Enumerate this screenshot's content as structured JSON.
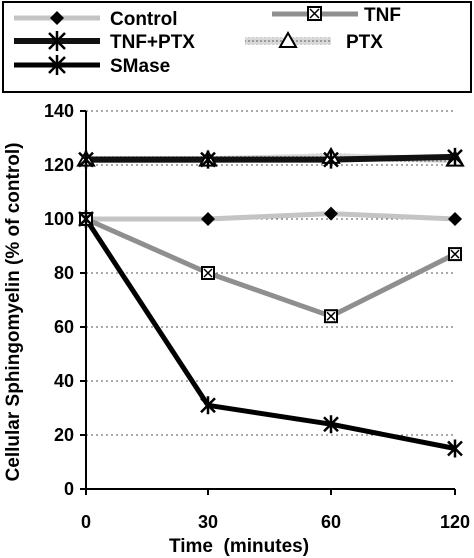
{
  "chart_data": {
    "type": "line",
    "title": "",
    "xlabel": "Time  (minutes)",
    "ylabel": "Cellular Sphingomyelin (% of control)",
    "x": [
      0,
      30,
      60,
      120
    ],
    "x_tick_labels": [
      "0",
      "30",
      "60",
      "120"
    ],
    "x_scale": "categorical-evenly-spaced",
    "ylim": [
      0,
      140
    ],
    "y_ticks": [
      0,
      20,
      40,
      60,
      80,
      100,
      120,
      140
    ],
    "y_tick_labels": [
      "0",
      "20",
      "40",
      "60",
      "80",
      "100",
      "120",
      "140"
    ],
    "grid": "horizontal dotted",
    "legend_position": "top (above plot, boxed)",
    "series": [
      {
        "name": "Control",
        "values": [
          100,
          100,
          102,
          100
        ],
        "marker": "diamond",
        "line_color": "#c4c4c4",
        "marker_color": "#000000"
      },
      {
        "name": "TNF",
        "values": [
          100,
          80,
          64,
          87
        ],
        "marker": "square-x",
        "line_color": "#8f8f8f",
        "marker_color": "#000000"
      },
      {
        "name": "TNF+PTX",
        "values": [
          122,
          122,
          122,
          123
        ],
        "marker": "star",
        "line_color": "#111111",
        "marker_color": "#000000"
      },
      {
        "name": "PTX",
        "values": [
          122,
          122,
          123,
          122
        ],
        "marker": "triangle",
        "line_color": "#bdbdbd",
        "marker_color": "#000000"
      },
      {
        "name": "SMase",
        "values": [
          100,
          31,
          24,
          15
        ],
        "marker": "star",
        "line_color": "#000000",
        "marker_color": "#000000"
      }
    ]
  }
}
